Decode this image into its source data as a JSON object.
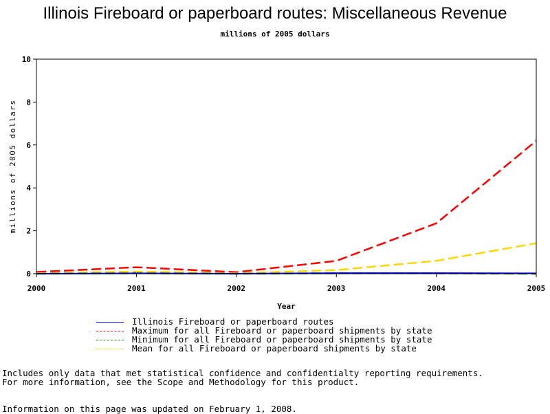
{
  "page": {
    "title": "Illinois Fireboard or paperboard routes: Miscellaneous Revenue",
    "subtitle": "millions of 2005 dollars",
    "note_line1": "Includes only data that met statistical confidence and confidentialty reporting requirements.",
    "note_line2": "For more information, see the Scope and Methodology for this product.",
    "updated": "Information on this page was updated on February 1, 2008."
  },
  "chart_data": {
    "type": "line",
    "title": "Illinois Fireboard or paperboard routes: Miscellaneous Revenue",
    "subtitle": "millions of 2005 dollars",
    "xlabel": "Year",
    "ylabel": "millions of 2005 dollars",
    "xlim": [
      2000,
      2005
    ],
    "ylim": [
      0,
      10
    ],
    "x_ticks": [
      2000,
      2001,
      2002,
      2003,
      2004,
      2005
    ],
    "y_ticks": [
      0,
      2,
      4,
      6,
      8,
      10
    ],
    "grid": false,
    "legend_position": "bottom",
    "series": [
      {
        "name": "Illinois Fireboard or paperboard routes",
        "color": "#0000ff",
        "dash": "solid",
        "x": [
          2000,
          2001,
          2002,
          2003,
          2004,
          2005
        ],
        "y": [
          0.0,
          0.02,
          0.0,
          0.03,
          0.03,
          0.02
        ]
      },
      {
        "name": "Maximum for all Fireboard or paperboard shipments by state",
        "color": "#ff0000",
        "dash": "dashed",
        "x": [
          2000,
          2001,
          2002,
          2003,
          2004,
          2005
        ],
        "y": [
          0.08,
          0.3,
          0.07,
          0.6,
          2.35,
          6.2
        ]
      },
      {
        "name": "Minimum for all Fireboard or paperboard shipments by state",
        "color": "#008000",
        "dash": "dashed",
        "x": [
          2000,
          2001,
          2002,
          2003,
          2004,
          2005
        ],
        "y": [
          0.0,
          0.02,
          0.0,
          0.02,
          0.02,
          0.0
        ]
      },
      {
        "name": "Mean for all Fireboard or paperboard shipments by state",
        "color": "#ffd700",
        "dash": "dashed",
        "x": [
          2000,
          2001,
          2002,
          2003,
          2004,
          2005
        ],
        "y": [
          0.02,
          0.1,
          0.02,
          0.17,
          0.6,
          1.42
        ]
      }
    ]
  }
}
